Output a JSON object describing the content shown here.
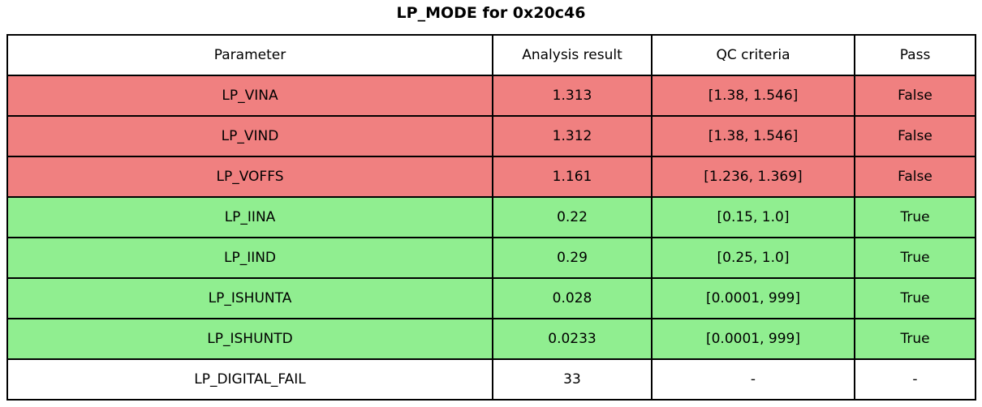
{
  "title": "LP_MODE for 0x20c46",
  "colors": {
    "fail_row_bg": "#f08080",
    "pass_row_bg": "#90ee90",
    "neutral_row_bg": "#ffffff",
    "border": "#000000",
    "text": "#000000"
  },
  "chart_data": {
    "type": "table",
    "title": "LP_MODE for 0x20c46",
    "columns": [
      "Parameter",
      "Analysis result",
      "QC criteria",
      "Pass"
    ],
    "rows": [
      {
        "parameter": "LP_VINA",
        "analysis_result": 1.313,
        "qc_criteria": "[1.38, 1.546]",
        "pass": "False",
        "status": "fail"
      },
      {
        "parameter": "LP_VIND",
        "analysis_result": 1.312,
        "qc_criteria": "[1.38, 1.546]",
        "pass": "False",
        "status": "fail"
      },
      {
        "parameter": "LP_VOFFS",
        "analysis_result": 1.161,
        "qc_criteria": "[1.236, 1.369]",
        "pass": "False",
        "status": "fail"
      },
      {
        "parameter": "LP_IINA",
        "analysis_result": 0.22,
        "qc_criteria": "[0.15, 1.0]",
        "pass": "True",
        "status": "pass"
      },
      {
        "parameter": "LP_IIND",
        "analysis_result": 0.29,
        "qc_criteria": "[0.25, 1.0]",
        "pass": "True",
        "status": "pass"
      },
      {
        "parameter": "LP_ISHUNTA",
        "analysis_result": 0.028,
        "qc_criteria": "[0.0001, 999]",
        "pass": "True",
        "status": "pass"
      },
      {
        "parameter": "LP_ISHUNTD",
        "analysis_result": 0.0233,
        "qc_criteria": "[0.0001, 999]",
        "pass": "True",
        "status": "pass"
      },
      {
        "parameter": "LP_DIGITAL_FAIL",
        "analysis_result": 33,
        "qc_criteria": "-",
        "pass": "-",
        "status": "neutral"
      }
    ]
  }
}
